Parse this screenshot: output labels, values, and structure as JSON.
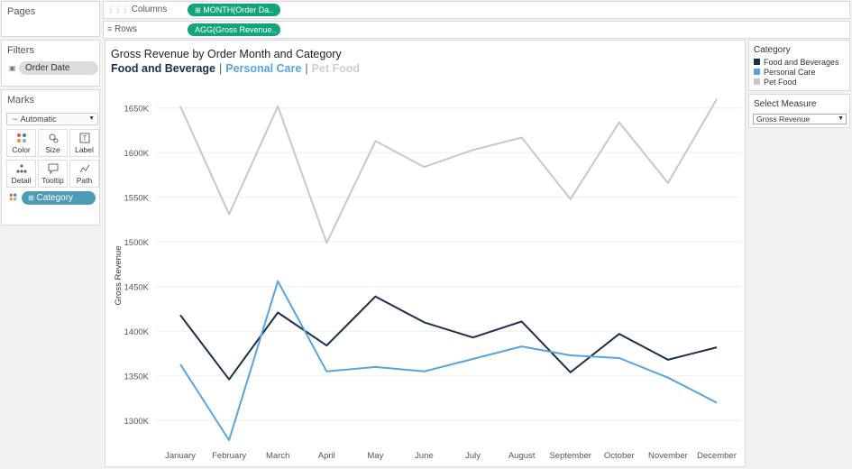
{
  "pages": {
    "title": "Pages"
  },
  "filters": {
    "title": "Filters",
    "items": [
      {
        "label": "Order Date"
      }
    ]
  },
  "marks": {
    "title": "Marks",
    "type_label": "Automatic",
    "buttons": [
      {
        "label": "Color",
        "icon": "color-dots-icon"
      },
      {
        "label": "Size",
        "icon": "size-icon"
      },
      {
        "label": "Label",
        "icon": "label-icon"
      },
      {
        "label": "Detail",
        "icon": "detail-icon"
      },
      {
        "label": "Tooltip",
        "icon": "tooltip-icon"
      },
      {
        "label": "Path",
        "icon": "path-icon"
      }
    ],
    "pill": "Category"
  },
  "shelves": {
    "columns": {
      "label": "Columns",
      "pill": "MONTH(Order Da.."
    },
    "rows": {
      "label": "Rows",
      "pill": "AGG(Gross Revenue.."
    }
  },
  "view": {
    "title": "Gross Revenue by Order Month and Category",
    "subtitle": [
      {
        "text": "Food and Beverage",
        "color": "#1b2f4a"
      },
      {
        "text": "Personal Care",
        "color": "#56a4e0"
      },
      {
        "text": "Pet Food",
        "color": "#cfcfcf"
      }
    ],
    "separator": "|"
  },
  "legend": {
    "title": "Category",
    "items": [
      {
        "label": "Food and Beverages",
        "color": "#1b2f4a"
      },
      {
        "label": "Personal Care",
        "color": "#56a4e0"
      },
      {
        "label": "Pet Food",
        "color": "#c8c8c8"
      }
    ]
  },
  "measure": {
    "title": "Select Measure",
    "value": "Gross Revenue"
  },
  "chart_data": {
    "type": "line",
    "title": "Gross Revenue by Order Month and Category",
    "xlabel": "",
    "ylabel": "Gross Revenue",
    "categories": [
      "January",
      "February",
      "March",
      "April",
      "May",
      "June",
      "July",
      "August",
      "September",
      "October",
      "November",
      "December"
    ],
    "ylim": [
      1275000,
      1670000
    ],
    "yticks": [
      1300000,
      1350000,
      1400000,
      1450000,
      1500000,
      1550000,
      1600000,
      1650000
    ],
    "ytick_labels": [
      "1300K",
      "1350K",
      "1400K",
      "1450K",
      "1500K",
      "1550K",
      "1600K",
      "1650K"
    ],
    "grid": true,
    "series": [
      {
        "name": "Pet Food",
        "color": "#c8c8c8",
        "values": [
          1652000,
          1531000,
          1652000,
          1499000,
          1613000,
          1584000,
          1603000,
          1617000,
          1548000,
          1634000,
          1566000,
          1660000
        ]
      },
      {
        "name": "Food and Beverages",
        "color": "#1b2f4a",
        "values": [
          1418000,
          1346000,
          1421000,
          1384000,
          1439000,
          1410000,
          1393000,
          1411000,
          1354000,
          1397000,
          1368000,
          1382000
        ]
      },
      {
        "name": "Personal Care",
        "color": "#56a4e0",
        "values": [
          1363000,
          1278000,
          1456000,
          1355000,
          1360000,
          1355000,
          1369000,
          1383000,
          1373000,
          1370000,
          1348000,
          1320000
        ]
      }
    ]
  }
}
